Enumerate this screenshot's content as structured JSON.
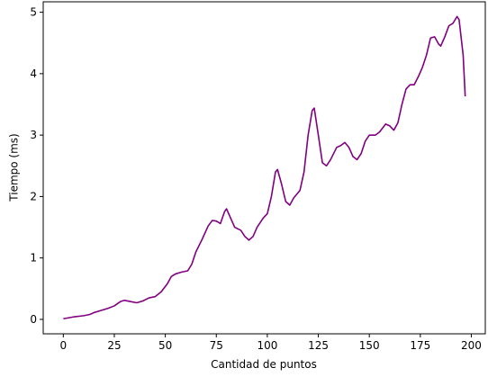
{
  "chart_data": {
    "type": "line",
    "xlabel": "Cantidad de puntos",
    "ylabel": "Tiempo (ms)",
    "x": [
      0,
      5,
      10,
      13,
      15,
      18,
      22,
      25,
      28,
      30,
      33,
      36,
      39,
      42,
      45,
      48,
      51,
      53,
      55,
      58,
      61,
      63,
      65,
      68,
      71,
      73,
      75,
      77,
      79,
      80,
      82,
      84,
      87,
      89,
      91,
      93,
      95,
      98,
      100,
      102,
      104,
      105,
      107,
      109,
      111,
      113,
      116,
      118,
      120,
      122,
      123,
      125,
      127,
      129,
      131,
      134,
      136,
      138,
      140,
      142,
      144,
      146,
      148,
      150,
      153,
      155,
      158,
      160,
      162,
      164,
      166,
      168,
      170,
      172,
      174,
      176,
      178,
      180,
      182,
      184,
      185,
      187,
      189,
      191,
      193,
      194,
      196,
      197
    ],
    "series": [
      {
        "name": "Tiempo",
        "color": "#800080",
        "values": [
          0.01,
          0.04,
          0.06,
          0.08,
          0.11,
          0.14,
          0.18,
          0.22,
          0.29,
          0.31,
          0.29,
          0.27,
          0.3,
          0.35,
          0.37,
          0.45,
          0.58,
          0.7,
          0.74,
          0.77,
          0.79,
          0.9,
          1.1,
          1.3,
          1.52,
          1.61,
          1.6,
          1.56,
          1.75,
          1.8,
          1.65,
          1.5,
          1.45,
          1.35,
          1.29,
          1.35,
          1.5,
          1.65,
          1.72,
          2.0,
          2.4,
          2.44,
          2.2,
          1.92,
          1.86,
          1.98,
          2.1,
          2.4,
          3.0,
          3.4,
          3.44,
          3.0,
          2.55,
          2.5,
          2.6,
          2.8,
          2.83,
          2.88,
          2.8,
          2.65,
          2.6,
          2.7,
          2.9,
          3.0,
          3.0,
          3.05,
          3.18,
          3.15,
          3.08,
          3.2,
          3.5,
          3.75,
          3.82,
          3.82,
          3.95,
          4.1,
          4.3,
          4.58,
          4.6,
          4.48,
          4.45,
          4.6,
          4.78,
          4.82,
          4.93,
          4.88,
          4.3,
          3.63
        ]
      }
    ],
    "xlim": [
      -9.85,
      206.85
    ],
    "xticks": [
      0,
      25,
      50,
      75,
      100,
      125,
      150,
      175,
      200
    ],
    "ylim": [
      -0.235,
      5.17
    ],
    "yticks": [
      0,
      1,
      2,
      3,
      4,
      5
    ]
  }
}
